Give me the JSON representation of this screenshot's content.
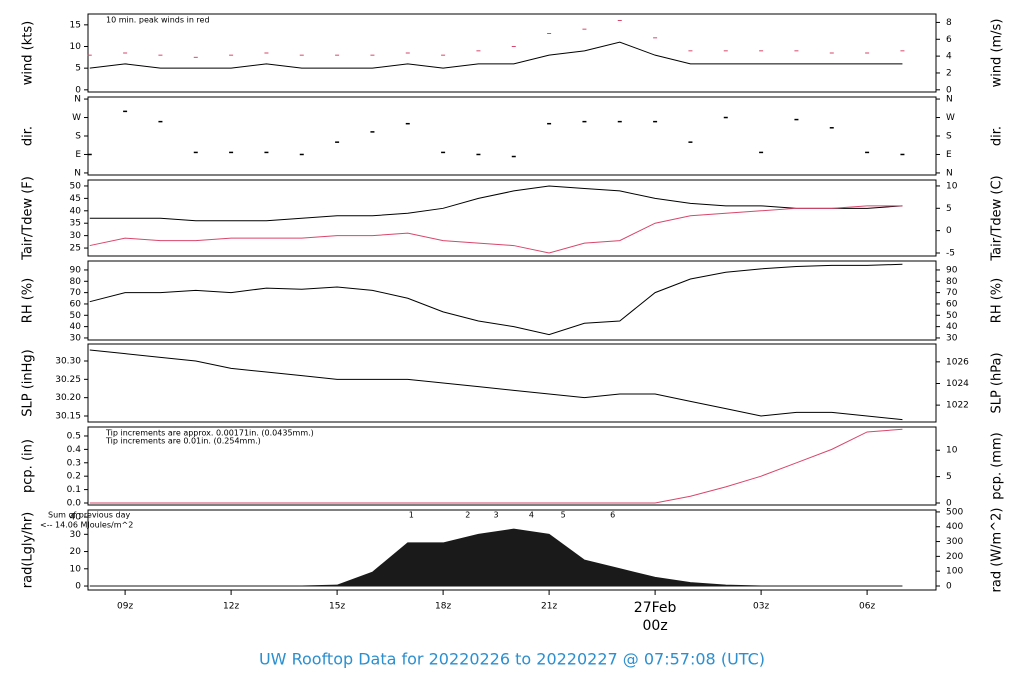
{
  "title": "UW Rooftop Data for 20220226  to  20220227 @ 07:57:08  (UTC)",
  "chart_data": [
    {
      "type": "line",
      "ylabel": "wind (kts)",
      "y2label": "wind (m/s)",
      "ylim": [
        -0.5,
        17.5
      ],
      "yticks": [
        0,
        5,
        10,
        15
      ],
      "y2lim": [
        -0.26,
        9.0
      ],
      "y2ticks": [
        0,
        2,
        4,
        6,
        8
      ],
      "annotations": [
        {
          "text": "10 min. peak winds in red",
          "color": "#d9466b"
        }
      ],
      "x": [
        8,
        9,
        10,
        11,
        12,
        13,
        14,
        15,
        16,
        17,
        18,
        19,
        20,
        21,
        22,
        23,
        24,
        25,
        26,
        27,
        28,
        29,
        30,
        31
      ],
      "series": [
        {
          "name": "wind",
          "color": "#000000",
          "values": [
            5,
            6,
            5,
            5,
            5,
            6,
            5,
            5,
            5,
            6,
            5,
            6,
            6,
            8,
            9,
            11,
            8,
            6,
            6,
            6,
            6,
            6,
            6,
            6
          ]
        },
        {
          "name": "peak",
          "color": "#d9466b",
          "marker": "dash",
          "values": [
            8,
            8.5,
            8,
            7.5,
            8,
            8.5,
            8,
            8,
            8,
            8.5,
            8,
            9,
            10,
            13,
            14,
            16,
            12,
            9,
            9,
            9,
            9,
            8.5,
            8.5,
            9
          ]
        }
      ]
    },
    {
      "type": "scatter",
      "ylabel": "dir.",
      "y2label": "dir.",
      "ylim": [
        -10,
        370
      ],
      "yticks": [
        {
          "value": 0,
          "label": "N"
        },
        {
          "value": 90,
          "label": "E"
        },
        {
          "value": 180,
          "label": "S"
        },
        {
          "value": 270,
          "label": "W"
        },
        {
          "value": 360,
          "label": "N"
        }
      ],
      "y2lim": [
        -10,
        370
      ],
      "y2ticks": [
        {
          "value": 0,
          "label": "N"
        },
        {
          "value": 90,
          "label": "E"
        },
        {
          "value": 180,
          "label": "S"
        },
        {
          "value": 270,
          "label": "W"
        },
        {
          "value": 360,
          "label": "N"
        }
      ],
      "x": [
        8,
        9,
        10,
        11,
        12,
        13,
        14,
        15,
        16,
        17,
        18,
        19,
        20,
        21,
        22,
        23,
        24,
        25,
        26,
        27,
        28,
        29,
        30,
        31
      ],
      "series": [
        {
          "name": "dir",
          "color": "#000000",
          "values": [
            90,
            300,
            250,
            100,
            100,
            100,
            90,
            150,
            200,
            240,
            100,
            90,
            80,
            240,
            250,
            250,
            250,
            150,
            270,
            100,
            260,
            220,
            100,
            90
          ]
        }
      ]
    },
    {
      "type": "line",
      "ylabel": "Tair/Tdew (F)",
      "y2label": "Tair/Tdew (C)",
      "ylim": [
        21.8,
        52.4
      ],
      "yticks": [
        25,
        30,
        35,
        40,
        45,
        50
      ],
      "y2lim": [
        -5.67,
        11.33
      ],
      "y2ticks": [
        -5,
        0,
        5,
        10
      ],
      "x": [
        8,
        9,
        10,
        11,
        12,
        13,
        14,
        15,
        16,
        17,
        18,
        19,
        20,
        21,
        22,
        23,
        24,
        25,
        26,
        27,
        28,
        29,
        30,
        31
      ],
      "series": [
        {
          "name": "Tair",
          "color": "#000000",
          "values": [
            37,
            37,
            37,
            36,
            36,
            36,
            37,
            38,
            38,
            39,
            41,
            45,
            48,
            50,
            49,
            48,
            45,
            43,
            42,
            42,
            41,
            41,
            41,
            42
          ]
        },
        {
          "name": "Tdew",
          "color": "#d9466b",
          "values": [
            26,
            29,
            28,
            28,
            29,
            29,
            29,
            30,
            30,
            31,
            28,
            27,
            26,
            23,
            27,
            28,
            35,
            38,
            39,
            40,
            41,
            41,
            42,
            42
          ]
        }
      ]
    },
    {
      "type": "line",
      "ylabel": "RH (%)",
      "y2label": "RH (%)",
      "ylim": [
        28.2,
        97.9
      ],
      "yticks": [
        30,
        40,
        50,
        60,
        70,
        80,
        90
      ],
      "y2lim": [
        28.2,
        97.9
      ],
      "y2ticks": [
        30,
        40,
        50,
        60,
        70,
        80,
        90
      ],
      "x": [
        8,
        9,
        10,
        11,
        12,
        13,
        14,
        15,
        16,
        17,
        18,
        19,
        20,
        21,
        22,
        23,
        24,
        25,
        26,
        27,
        28,
        29,
        30,
        31
      ],
      "series": [
        {
          "name": "RH",
          "color": "#000000",
          "values": [
            62,
            70,
            70,
            72,
            70,
            74,
            73,
            75,
            72,
            65,
            53,
            45,
            40,
            33,
            43,
            45,
            70,
            82,
            88,
            91,
            93,
            94,
            94,
            95
          ]
        }
      ]
    },
    {
      "type": "line",
      "ylabel": "SLP (inHg)",
      "y2label": "SLP (hPa)",
      "ylim": [
        30.1336,
        30.3464
      ],
      "yticks": [
        30.15,
        {
          "value": 30.2,
          "label": "30.20"
        },
        30.25,
        {
          "value": 30.3,
          "label": "30.30"
        }
      ],
      "y2lim": [
        1020.44,
        1027.65
      ],
      "y2ticks": [
        1022,
        1024,
        1026
      ],
      "x": [
        8,
        9,
        10,
        11,
        12,
        13,
        14,
        15,
        16,
        17,
        18,
        19,
        20,
        21,
        22,
        23,
        24,
        25,
        26,
        27,
        28,
        29,
        30,
        31
      ],
      "series": [
        {
          "name": "SLP",
          "color": "#000000",
          "values": [
            30.33,
            30.32,
            30.31,
            30.3,
            30.28,
            30.27,
            30.26,
            30.25,
            30.25,
            30.25,
            30.24,
            30.23,
            30.22,
            30.21,
            30.2,
            30.21,
            30.21,
            30.19,
            30.17,
            30.15,
            30.16,
            30.16,
            30.15,
            30.14
          ]
        }
      ]
    },
    {
      "type": "line",
      "ylabel": "pcp. (in)",
      "y2label": "pcp. (mm)",
      "ylim": [
        -0.015,
        0.567
      ],
      "yticks": [
        {
          "value": 0,
          "label": "0.0"
        },
        0.1,
        0.2,
        0.3,
        0.4,
        0.5
      ],
      "y2lim": [
        -0.38,
        14.4
      ],
      "y2ticks": [
        0,
        5,
        10
      ],
      "annotations": [
        {
          "text": "Tip increments are approx. 0.00171in. (0.0435mm.)",
          "color": "#d9466b"
        },
        {
          "text": "Tip increments are 0.01in. (0.254mm.)",
          "color": "#2b8fd0"
        }
      ],
      "x": [
        8,
        9,
        10,
        11,
        12,
        13,
        14,
        15,
        16,
        17,
        18,
        19,
        20,
        21,
        22,
        23,
        24,
        25,
        26,
        27,
        28,
        29,
        30,
        31
      ],
      "series": [
        {
          "name": "pcp",
          "color": "#d9466b",
          "values": [
            0,
            0,
            0,
            0,
            0,
            0,
            0,
            0,
            0,
            0,
            0,
            0,
            0,
            0,
            0,
            0,
            0,
            0.05,
            0.12,
            0.2,
            0.3,
            0.4,
            0.53,
            0.55
          ]
        }
      ]
    },
    {
      "type": "area",
      "ylabel": "rad(Lgly/hr)",
      "y2label": "rad (W/m^2)",
      "ylim": [
        -2.3,
        44.1
      ],
      "yticks": [
        0,
        10,
        20,
        30,
        40
      ],
      "y2lim": [
        -27,
        513
      ],
      "y2ticks": [
        0,
        100,
        200,
        300,
        400,
        500
      ],
      "annotations": [
        {
          "text": "Sum of previous day",
          "color": "#9b30d9"
        },
        {
          "text": "<-- 14.06 MJoules/m^2",
          "color": "#9b30d9"
        }
      ],
      "hour_markers": [
        "1",
        "2",
        "3",
        "4",
        "5",
        "6"
      ],
      "marker_color": "#9b30d9",
      "xlim": [
        7.95,
        31.95
      ],
      "xticks": [
        {
          "value": 9,
          "label": "09z"
        },
        {
          "value": 12,
          "label": "12z"
        },
        {
          "value": 15,
          "label": "15z"
        },
        {
          "value": 18,
          "label": "18z"
        },
        {
          "value": 21,
          "label": "21z"
        },
        {
          "value": 24,
          "label": "00z"
        },
        {
          "value": 27,
          "label": "03z"
        },
        {
          "value": 30,
          "label": "06z"
        }
      ],
      "x_date_label": {
        "value": 24,
        "label": "27Feb",
        "color": "#d9466b"
      },
      "x": [
        8,
        9,
        10,
        11,
        12,
        13,
        14,
        15,
        16,
        17,
        18,
        19,
        20,
        21,
        22,
        23,
        24,
        25,
        26,
        27,
        28,
        29,
        30,
        31
      ],
      "series": [
        {
          "name": "rad",
          "color": "#1a1a1a",
          "values": [
            0,
            0,
            0,
            0,
            0,
            0,
            0,
            0.5,
            8,
            25,
            25,
            30,
            33,
            30,
            15,
            10,
            5,
            2,
            0.5,
            0,
            0,
            0,
            0,
            0
          ]
        }
      ]
    }
  ]
}
